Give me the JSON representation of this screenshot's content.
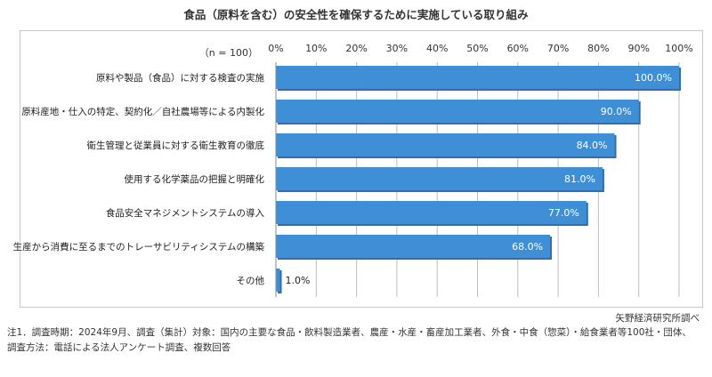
{
  "chart_data": {
    "type": "bar",
    "orientation": "horizontal",
    "title": "食品（原料を含む）の安全性を確保するために実施している取り組み",
    "n_label": "（n = 100）",
    "x_ticks": [
      "0%",
      "10%",
      "20%",
      "30%",
      "40%",
      "50%",
      "60%",
      "70%",
      "80%",
      "90%",
      "100%"
    ],
    "xlim": [
      0,
      100
    ],
    "categories": [
      "原料や製品（食品）に対する検査の実施",
      "原料産地・仕入の特定、契約化／自社農場等による内製化",
      "衛生管理と従業員に対する衛生教育の徹底",
      "使用する化学薬品の把握と明確化",
      "食品安全マネジメントシステムの導入",
      "生産から消費に至るまでのトレーサビリティシステムの構築",
      "その他"
    ],
    "values": [
      100.0,
      90.0,
      84.0,
      81.0,
      77.0,
      68.0,
      1.0
    ],
    "value_labels": [
      "100.0%",
      "90.0%",
      "84.0%",
      "81.0%",
      "77.0%",
      "68.0%",
      "1.0%"
    ],
    "bar_color": "#3f8fd6",
    "grid": true
  },
  "source": "矢野経済研究所調べ",
  "notes": [
    "注1．調査時期：2024年9月、調査（集計）対象：国内の主要な食品・飲料製造業者、農産・水産・畜産加工業者、外食・中食（惣菜）・給食業者等100社・団体、",
    "調査方法：電話による法人アンケート調査、複数回答"
  ]
}
